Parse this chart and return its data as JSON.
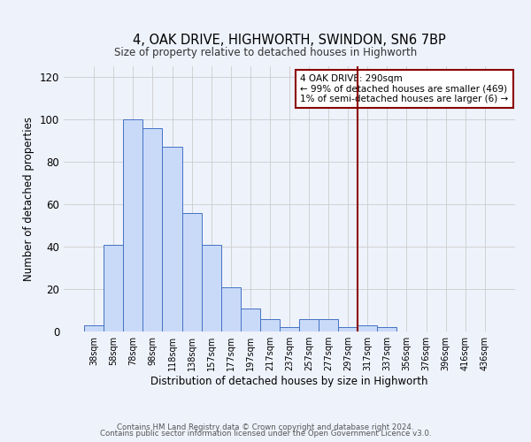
{
  "title": "4, OAK DRIVE, HIGHWORTH, SWINDON, SN6 7BP",
  "subtitle": "Size of property relative to detached houses in Highworth",
  "xlabel": "Distribution of detached houses by size in Highworth",
  "ylabel": "Number of detached properties",
  "bar_labels": [
    "38sqm",
    "58sqm",
    "78sqm",
    "98sqm",
    "118sqm",
    "138sqm",
    "157sqm",
    "177sqm",
    "197sqm",
    "217sqm",
    "237sqm",
    "257sqm",
    "277sqm",
    "297sqm",
    "317sqm",
    "337sqm",
    "356sqm",
    "376sqm",
    "396sqm",
    "416sqm",
    "436sqm"
  ],
  "bar_values": [
    3,
    41,
    100,
    96,
    87,
    56,
    41,
    21,
    11,
    6,
    2,
    6,
    6,
    2,
    3,
    2,
    0,
    0,
    0,
    0,
    0
  ],
  "bar_color": "#c9daf8",
  "bar_edge_color": "#4472c4",
  "ylim": [
    0,
    125
  ],
  "yticks": [
    0,
    20,
    40,
    60,
    80,
    100,
    120
  ],
  "vline_x_index": 13.5,
  "vline_color": "#8b0000",
  "annotation_title": "4 OAK DRIVE: 290sqm",
  "annotation_line1": "← 99% of detached houses are smaller (469)",
  "annotation_line2": "1% of semi-detached houses are larger (6) →",
  "annotation_box_color": "#ffffff",
  "annotation_box_edge": "#8b0000",
  "footer_line1": "Contains HM Land Registry data © Crown copyright and database right 2024.",
  "footer_line2": "Contains public sector information licensed under the Open Government Licence v3.0.",
  "background_color": "#eef2fb",
  "grid_color": "#cccccc"
}
